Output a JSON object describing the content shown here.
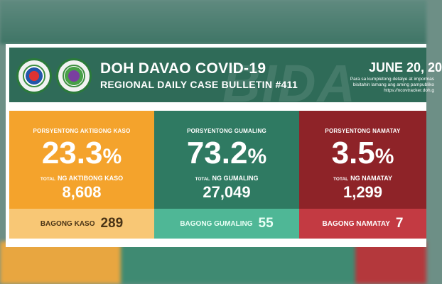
{
  "header": {
    "title": "DOH DAVAO COVID-19",
    "subtitle": "REGIONAL DAILY CASE BULLETIN #411",
    "date": "JUNE 20, 20",
    "note_lines": [
      "Para sa kumpletong detalye at impormas",
      "bisitahin lamang ang aming pampubliko",
      "https://ncovtracker.doh.g"
    ],
    "watermark": "BIDA"
  },
  "panels": [
    {
      "key": "active",
      "label": "PORSYENTONG AKTIBONG KASO",
      "percent": "23.3",
      "percent_symbol": "%",
      "total_prefix": "TOTAL",
      "total_label": "NG AKTIBONG KASO",
      "total": "8,608",
      "new_label": "BAGONG KASO",
      "new_value": "289",
      "color": "#f4a32c"
    },
    {
      "key": "recovered",
      "label": "PORSYENTONG GUMALING",
      "percent": "73.2",
      "percent_symbol": "%",
      "total_prefix": "TOTAL",
      "total_label": "NG GUMALING",
      "total": "27,049",
      "new_label": "BAGONG GUMALING",
      "new_value": "55",
      "color": "#2f7a62"
    },
    {
      "key": "deaths",
      "label": "PORSYENTONG NAMATAY",
      "percent": "3.5",
      "percent_symbol": "%",
      "total_prefix": "TOTAL",
      "total_label": "NG NAMATAY",
      "total": "1,299",
      "new_label": "BAGONG NAMATAY",
      "new_value": "7",
      "color": "#8e2328"
    }
  ]
}
